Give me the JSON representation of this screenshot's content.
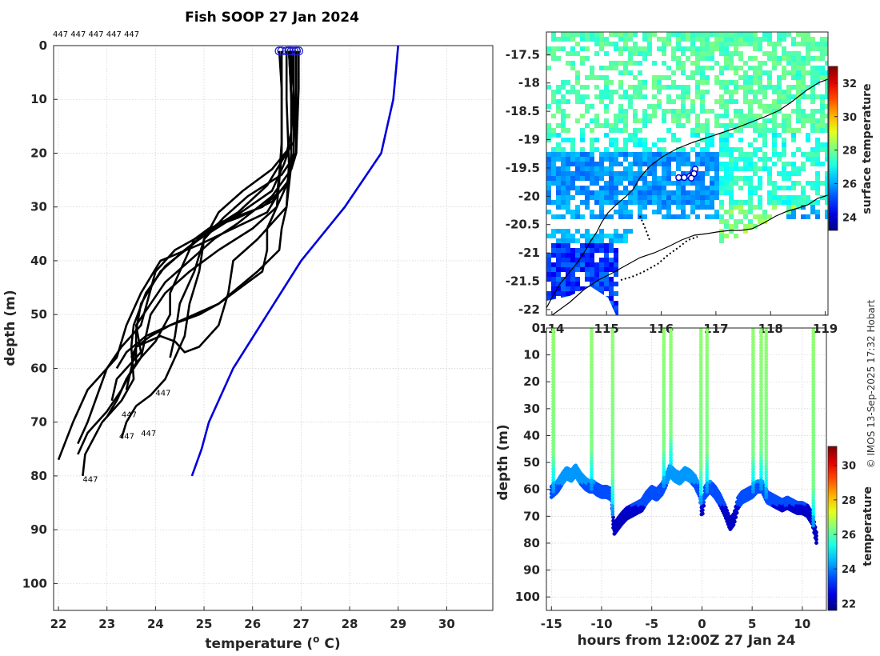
{
  "chart_data": [
    {
      "type": "line",
      "name": "profile",
      "title": "Fish SOOP 27 Jan 2024",
      "xlabel": "temperature (",
      "xlabel_sup": "o",
      "xlabel_end": " C)",
      "ylabel": "depth (m)",
      "xlim": [
        21.9,
        30.95
      ],
      "ylim": [
        105,
        0
      ],
      "xticks": [
        22,
        23,
        24,
        25,
        26,
        27,
        28,
        29,
        30
      ],
      "yticks": [
        0,
        10,
        20,
        30,
        40,
        50,
        60,
        70,
        80,
        90,
        100
      ],
      "top_labels": "447 447 447 447 447",
      "profile_labels": [
        "447",
        "447",
        "447",
        "447",
        "447"
      ],
      "climatology": {
        "color": "#0000dd",
        "x": [
          29.0,
          28.95,
          28.9,
          28.65,
          27.9,
          27.0,
          26.3,
          25.6,
          25.1,
          24.95,
          24.75
        ],
        "y": [
          0,
          5,
          10,
          20,
          30,
          40,
          50,
          60,
          70,
          75,
          80
        ]
      },
      "profiles": [
        {
          "x": [
            26.55,
            26.6,
            26.6,
            26.55,
            26.5,
            26.3,
            25.6,
            24.9,
            24.1,
            23.7,
            23.4,
            23.2,
            22.6,
            22.3,
            22.0
          ],
          "y": [
            1,
            8,
            18,
            24,
            28,
            31,
            34,
            37,
            40,
            46,
            52,
            58,
            64,
            70,
            77
          ]
        },
        {
          "x": [
            26.75,
            26.8,
            26.8,
            26.65,
            26.4,
            25.6,
            24.9,
            24.2,
            23.8,
            23.55,
            23.5,
            23.55,
            23.3,
            22.9,
            22.55,
            22.5
          ],
          "y": [
            1,
            8,
            18,
            22,
            27,
            32,
            36,
            41,
            46,
            52,
            56,
            62,
            66,
            70,
            76,
            80
          ]
        },
        {
          "x": [
            26.8,
            26.85,
            26.85,
            26.7,
            26.2,
            25.3,
            24.6,
            24.1,
            23.7,
            23.6,
            23.6,
            23.3,
            23.0,
            22.6,
            22.4
          ],
          "y": [
            1,
            8,
            20,
            26,
            30,
            33,
            38,
            42,
            48,
            53,
            59,
            64,
            68,
            72,
            76
          ]
        },
        {
          "x": [
            26.9,
            26.9,
            26.85,
            26.4,
            25.8,
            25.3,
            25.0,
            24.9,
            24.7,
            24.6,
            24.4,
            24.2,
            23.9,
            23.6,
            23.4,
            23.3
          ],
          "y": [
            1,
            8,
            18,
            23,
            27,
            31,
            36,
            42,
            48,
            54,
            58,
            62,
            65,
            67,
            70,
            73
          ]
        },
        {
          "x": [
            26.95,
            26.95,
            26.9,
            26.6,
            25.9,
            25.4,
            25.0,
            24.8,
            24.5,
            24.4,
            24.3
          ],
          "y": [
            1,
            8,
            20,
            24,
            28,
            32,
            36,
            42,
            48,
            54,
            58
          ]
        },
        {
          "x": [
            26.75,
            26.8,
            26.8,
            26.7,
            26.6,
            26.55,
            26.1,
            25.7,
            25.3,
            24.8,
            24.3,
            23.9,
            23.6,
            23.5
          ],
          "y": [
            1,
            10,
            22,
            30,
            34,
            38,
            42,
            45,
            48,
            50,
            52,
            54,
            56,
            58
          ]
        },
        {
          "x": [
            26.7,
            26.7,
            26.75,
            26.7,
            26.1,
            25.6,
            25.5,
            25.3,
            24.9,
            24.6,
            24.4,
            24.1,
            23.6,
            23.5,
            23.4
          ],
          "y": [
            1,
            10,
            22,
            30,
            36,
            40,
            46,
            52,
            56,
            57,
            55,
            54,
            56,
            60,
            64
          ]
        },
        {
          "x": [
            26.85,
            26.85,
            26.8,
            26.7,
            26.3,
            25.7,
            25.0,
            24.4,
            24.0,
            23.85,
            23.7,
            23.3,
            23.0,
            22.8,
            22.6,
            22.4
          ],
          "y": [
            1,
            8,
            16,
            20,
            26,
            31,
            35,
            38,
            42,
            47,
            52,
            56,
            60,
            65,
            70,
            74
          ]
        },
        {
          "x": [
            26.9,
            26.9,
            26.9,
            26.8,
            26.4,
            25.7,
            25.2,
            24.7,
            24.2,
            23.9,
            23.6,
            23.7,
            23.2,
            23.1
          ],
          "y": [
            1,
            10,
            20,
            23,
            28,
            33,
            36,
            40,
            44,
            48,
            52,
            57,
            62,
            66
          ]
        },
        {
          "x": [
            26.8,
            26.8,
            26.8,
            26.75,
            26.5,
            26.0,
            25.3,
            24.7,
            24.2,
            23.9,
            23.8,
            23.7,
            23.4,
            23.2
          ],
          "y": [
            1,
            10,
            20,
            25,
            30,
            34,
            38,
            42,
            46,
            50,
            54,
            58,
            62,
            66
          ]
        },
        {
          "x": [
            26.6,
            26.6,
            26.6,
            26.55,
            26.5,
            26.4,
            26.3,
            26.3,
            26.2,
            25.9,
            25.6,
            25.3,
            24.9,
            24.3,
            23.8,
            23.4,
            23.2
          ],
          "y": [
            1,
            10,
            20,
            25,
            30,
            32,
            34,
            38,
            42,
            44,
            46,
            48,
            50,
            52,
            54,
            57,
            60
          ]
        },
        {
          "x": [
            26.75,
            26.8,
            26.8,
            26.75,
            26.4,
            25.7,
            25.1,
            24.8,
            24.5,
            24.3,
            24.3,
            24.0,
            23.6,
            23.4,
            23.2,
            23.0
          ],
          "y": [
            1,
            10,
            20,
            25,
            29,
            32,
            34,
            36,
            42,
            46,
            50,
            55,
            59,
            62,
            66,
            69
          ]
        }
      ]
    },
    {
      "type": "heatmap",
      "name": "map",
      "xlim": [
        113.9,
        119.05
      ],
      "ylim": [
        -22.1,
        -17.1
      ],
      "xticks": [
        114,
        115,
        116,
        117,
        118,
        119
      ],
      "xtick_labels": [
        "114",
        "115",
        "116",
        "117",
        "118",
        "119"
      ],
      "yticks": [
        -17.5,
        -18,
        -18.5,
        -19,
        -19.5,
        -20,
        -20.5,
        -21,
        -21.5,
        -22
      ],
      "ytick_labels": [
        "-17.5",
        "-18",
        "-18.5",
        "-19",
        "-19.5",
        "-20",
        "-20.5",
        "-21",
        "-21.5",
        "-22"
      ],
      "colorbar": {
        "label": "surface temperature",
        "min": 23.2,
        "max": 33.0,
        "ticks": [
          24,
          26,
          28,
          30,
          32
        ]
      },
      "track": {
        "color": "#0000cc",
        "lon": [
          116.32,
          116.42,
          116.52,
          116.58,
          116.62,
          116.6,
          116.55
        ],
        "lat": [
          -19.67,
          -19.67,
          -19.65,
          -19.58,
          -19.52,
          -19.6,
          -19.68
        ]
      }
    },
    {
      "type": "scatter",
      "name": "section",
      "xlabel": "hours from 12:00Z 27 Jan 24",
      "ylabel": "depth (m)",
      "xlim": [
        -15.5,
        12.4
      ],
      "ylim": [
        105,
        0
      ],
      "xticks": [
        -15,
        -10,
        -5,
        0,
        5,
        10
      ],
      "yticks": [
        0,
        10,
        20,
        30,
        40,
        50,
        60,
        70,
        80,
        90,
        100
      ],
      "colorbar": {
        "label": "temperature",
        "min": 21.6,
        "max": 31.1,
        "ticks": [
          22,
          24,
          26,
          28,
          30
        ]
      },
      "casts": [
        -14.8,
        -11.0,
        -8.9,
        -3.8,
        -3.1,
        -0.1,
        0.5,
        5.1,
        5.9,
        6.4,
        11.1
      ],
      "bottom": {
        "x": [
          -15.0,
          -14.4,
          -13.9,
          -13.5,
          -13.0,
          -12.6,
          -12.1,
          -11.6,
          -11.2,
          -10.8,
          -10.5,
          -10.0,
          -9.5,
          -9.0,
          -8.8,
          -8.4,
          -8.0,
          -7.5,
          -7.0,
          -6.5,
          -6.0,
          -5.5,
          -5.0,
          -4.5,
          -4.0,
          -3.6,
          -3.2,
          -2.7,
          -2.2,
          -1.7,
          -1.2,
          -0.7,
          -0.2,
          0.0,
          0.3,
          0.8,
          1.3,
          1.8,
          2.3,
          2.8,
          3.2,
          3.6,
          4.0,
          4.5,
          5.0,
          5.5,
          6.0,
          6.5,
          7.0,
          7.5,
          8.0,
          8.5,
          9.0,
          9.5,
          10.0,
          10.5,
          11.0,
          11.4
        ],
        "y": [
          62,
          60,
          57,
          55,
          56,
          54,
          57,
          59,
          60,
          60,
          61,
          62,
          62,
          63,
          76,
          74,
          72,
          70,
          69,
          68,
          67,
          64,
          62,
          63,
          61,
          58,
          54,
          56,
          57,
          55,
          56,
          58,
          62,
          70,
          62,
          60,
          62,
          65,
          69,
          74,
          72,
          66,
          64,
          63,
          62,
          60,
          60,
          64,
          65,
          66,
          67,
          66,
          67,
          68,
          68,
          69,
          72,
          79
        ]
      }
    }
  ],
  "credit": "© IMOS 13-Sep-2025 17:32 Hobart"
}
